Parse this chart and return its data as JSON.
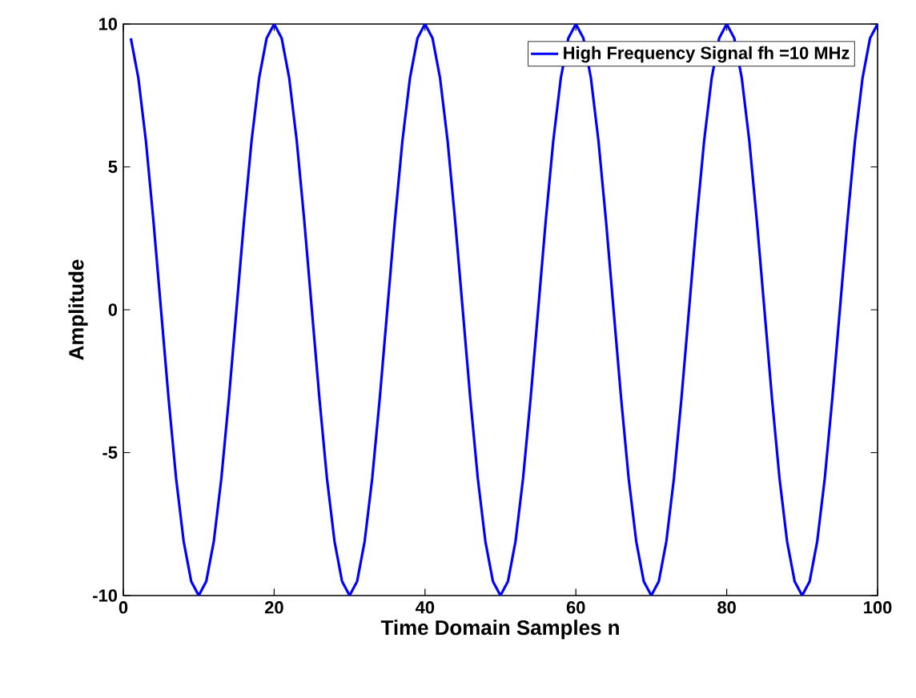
{
  "chart_data": {
    "type": "line",
    "xlabel": "Time Domain Samples n",
    "ylabel": "Amplitude",
    "x": [
      1,
      2,
      3,
      4,
      5,
      6,
      7,
      8,
      9,
      10,
      11,
      12,
      13,
      14,
      15,
      16,
      17,
      18,
      19,
      20,
      21,
      22,
      23,
      24,
      25,
      26,
      27,
      28,
      29,
      30,
      31,
      32,
      33,
      34,
      35,
      36,
      37,
      38,
      39,
      40,
      41,
      42,
      43,
      44,
      45,
      46,
      47,
      48,
      49,
      50,
      51,
      52,
      53,
      54,
      55,
      56,
      57,
      58,
      59,
      60,
      61,
      62,
      63,
      64,
      65,
      66,
      67,
      68,
      69,
      70,
      71,
      72,
      73,
      74,
      75,
      76,
      77,
      78,
      79,
      80,
      81,
      82,
      83,
      84,
      85,
      86,
      87,
      88,
      89,
      90,
      91,
      92,
      93,
      94,
      95,
      96,
      97,
      98,
      99,
      100
    ],
    "series": [
      {
        "name": "High Frequency Signal fh =10 MHz",
        "color": "#0000ff",
        "values": [
          9.5,
          8.1,
          5.9,
          3.1,
          0,
          -3.1,
          -5.9,
          -8.1,
          -9.5,
          -10,
          -9.5,
          -8.1,
          -5.9,
          -3.1,
          0,
          3.1,
          5.9,
          8.1,
          9.5,
          10,
          9.5,
          8.1,
          5.9,
          3.1,
          0,
          -3.1,
          -5.9,
          -8.1,
          -9.5,
          -10,
          -9.5,
          -8.1,
          -5.9,
          -3.1,
          0,
          3.1,
          5.9,
          8.1,
          9.5,
          10,
          9.5,
          8.1,
          5.9,
          3.1,
          0,
          -3.1,
          -5.9,
          -8.1,
          -9.5,
          -10,
          -9.5,
          -8.1,
          -5.9,
          -3.1,
          0,
          3.1,
          5.9,
          8.1,
          9.5,
          10,
          9.5,
          8.1,
          5.9,
          3.1,
          0,
          -3.1,
          -5.9,
          -8.1,
          -9.5,
          -10,
          -9.5,
          -8.1,
          -5.9,
          -3.1,
          0,
          3.1,
          5.9,
          8.1,
          9.5,
          10,
          9.5,
          8.1,
          5.9,
          3.1,
          0,
          -3.1,
          -5.9,
          -8.1,
          -9.5,
          -10,
          -9.5,
          -8.1,
          -5.9,
          -3.1,
          0,
          3.1,
          5.9,
          8.1,
          9.5,
          10
        ]
      }
    ],
    "xlim": [
      0,
      100
    ],
    "ylim": [
      -10,
      10
    ],
    "xticks": [
      0,
      20,
      40,
      60,
      80,
      100
    ],
    "yticks": [
      -10,
      -5,
      0,
      5,
      10
    ],
    "legend": "top right",
    "grid": false,
    "marker": "none",
    "line_style": "solid"
  }
}
